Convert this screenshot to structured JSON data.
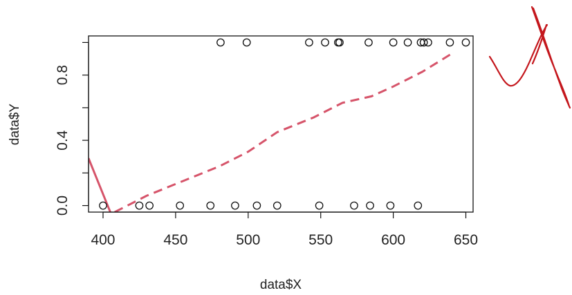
{
  "chart_data": {
    "type": "scatter",
    "title": "",
    "xlabel": "data$X",
    "ylabel": "data$Y",
    "xlim": [
      390,
      655
    ],
    "ylim": [
      -0.04,
      1.04
    ],
    "x_ticks": [
      "400",
      "450",
      "500",
      "550",
      "600",
      "650"
    ],
    "y_ticks": [
      "0.0",
      "0.4",
      "0.8"
    ],
    "y_tick_marks": [
      0.0,
      0.2,
      0.4,
      0.6,
      0.8,
      1.0
    ],
    "grid": false,
    "points": [
      {
        "x": 400,
        "y": 0
      },
      {
        "x": 425,
        "y": 0
      },
      {
        "x": 432,
        "y": 0
      },
      {
        "x": 453,
        "y": 0
      },
      {
        "x": 474,
        "y": 0
      },
      {
        "x": 491,
        "y": 0
      },
      {
        "x": 506,
        "y": 0
      },
      {
        "x": 520,
        "y": 0
      },
      {
        "x": 549,
        "y": 0
      },
      {
        "x": 573,
        "y": 0
      },
      {
        "x": 584,
        "y": 0
      },
      {
        "x": 598,
        "y": 0
      },
      {
        "x": 617,
        "y": 0
      },
      {
        "x": 481,
        "y": 1
      },
      {
        "x": 499,
        "y": 1
      },
      {
        "x": 542,
        "y": 1
      },
      {
        "x": 553,
        "y": 1
      },
      {
        "x": 562,
        "y": 1
      },
      {
        "x": 563,
        "y": 1
      },
      {
        "x": 583,
        "y": 1
      },
      {
        "x": 600,
        "y": 1
      },
      {
        "x": 610,
        "y": 1
      },
      {
        "x": 619,
        "y": 1
      },
      {
        "x": 621,
        "y": 1
      },
      {
        "x": 624,
        "y": 1
      },
      {
        "x": 639,
        "y": 1
      },
      {
        "x": 650,
        "y": 1
      }
    ],
    "series": [
      {
        "style": "solid",
        "color": "#d6546a",
        "x": [
          390,
          405
        ],
        "y": [
          0.29,
          -0.04
        ]
      },
      {
        "style": "dashed",
        "color": "#d6546a",
        "x": [
          408,
          430,
          455,
          480,
          500,
          520,
          545,
          565,
          585,
          600,
          620,
          640
        ],
        "y": [
          -0.04,
          0.06,
          0.15,
          0.24,
          0.33,
          0.45,
          0.54,
          0.63,
          0.67,
          0.73,
          0.82,
          0.93
        ]
      }
    ],
    "annotation": {
      "mark": "handwritten-check-cross",
      "color": "#c4161c"
    }
  }
}
